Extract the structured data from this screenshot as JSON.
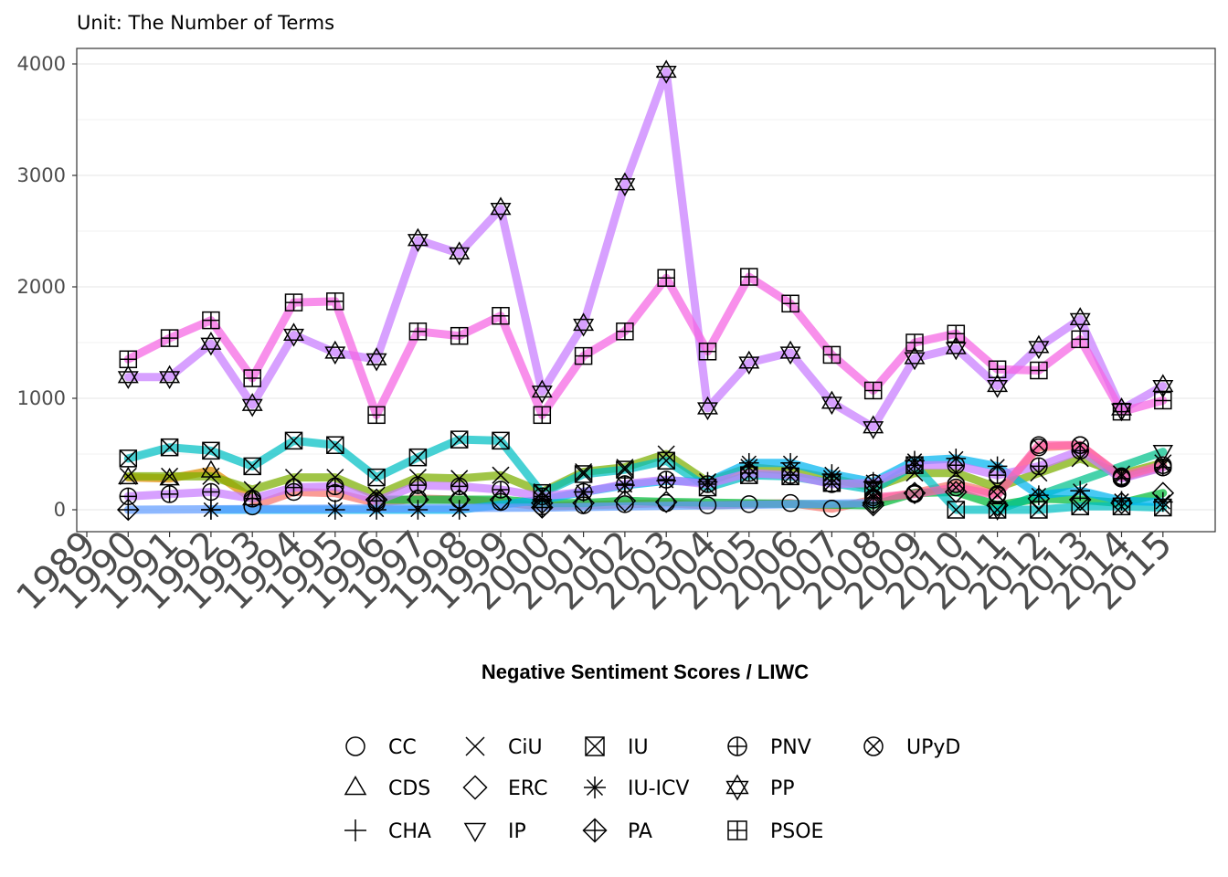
{
  "chart_data": {
    "type": "line",
    "subtitle": "Unit: The Number of Terms",
    "xlabel": "Negative Sentiment Scores / LIWC",
    "ylabel": "",
    "xlim": [
      1989,
      2015
    ],
    "ylim": [
      -150,
      4100
    ],
    "x_ticks": [
      1989,
      1990,
      1991,
      1992,
      1993,
      1994,
      1995,
      1996,
      1997,
      1998,
      1999,
      2000,
      2001,
      2002,
      2003,
      2004,
      2005,
      2006,
      2007,
      2008,
      2009,
      2010,
      2011,
      2012,
      2013,
      2014,
      2015
    ],
    "y_ticks": [
      0,
      1000,
      2000,
      3000,
      4000
    ],
    "grid": "horizontal",
    "legend_position": "bottom",
    "series": [
      {
        "name": "CC",
        "shape": "circle",
        "color": "#F8766D",
        "points": [
          [
            1993,
            30
          ],
          [
            1994,
            160
          ],
          [
            1995,
            150
          ],
          [
            1996,
            60
          ],
          [
            1997,
            100
          ],
          [
            1998,
            90
          ],
          [
            1999,
            70
          ],
          [
            2000,
            30
          ],
          [
            2001,
            40
          ],
          [
            2002,
            50
          ],
          [
            2003,
            60
          ],
          [
            2004,
            40
          ],
          [
            2005,
            50
          ],
          [
            2006,
            60
          ],
          [
            2007,
            10
          ],
          [
            2008,
            90
          ],
          [
            2009,
            150
          ],
          [
            2010,
            230
          ],
          [
            2011,
            140
          ],
          [
            2012,
            560
          ],
          [
            2013,
            580
          ],
          [
            2014,
            290
          ],
          [
            2015,
            380
          ]
        ]
      },
      {
        "name": "CDS",
        "shape": "triangle",
        "color": "#DE8C00",
        "points": [
          [
            1990,
            290
          ],
          [
            1991,
            280
          ],
          [
            1992,
            350
          ],
          [
            1993,
            100
          ]
        ]
      },
      {
        "name": "CHA",
        "shape": "plus",
        "color": "#B79F00",
        "points": [
          [
            1992,
            0
          ]
        ]
      },
      {
        "name": "CiU",
        "shape": "x",
        "color": "#7CAE00",
        "points": [
          [
            1990,
            300
          ],
          [
            1991,
            300
          ],
          [
            1992,
            300
          ],
          [
            1993,
            180
          ],
          [
            1994,
            290
          ],
          [
            1995,
            290
          ],
          [
            1996,
            130
          ],
          [
            1997,
            290
          ],
          [
            1998,
            280
          ],
          [
            1999,
            310
          ],
          [
            2000,
            160
          ],
          [
            2001,
            340
          ],
          [
            2002,
            380
          ],
          [
            2003,
            500
          ],
          [
            2004,
            250
          ],
          [
            2005,
            380
          ],
          [
            2006,
            350
          ],
          [
            2007,
            280
          ],
          [
            2008,
            200
          ],
          [
            2009,
            330
          ],
          [
            2010,
            330
          ],
          [
            2011,
            200
          ],
          [
            2012,
            330
          ],
          [
            2013,
            460
          ],
          [
            2014,
            320
          ],
          [
            2015,
            420
          ]
        ]
      },
      {
        "name": "ERC",
        "shape": "diamond",
        "color": "#00BA38",
        "points": [
          [
            1996,
            90
          ],
          [
            1997,
            90
          ],
          [
            1998,
            90
          ],
          [
            1999,
            90
          ],
          [
            2000,
            60
          ],
          [
            2001,
            60
          ],
          [
            2002,
            80
          ],
          [
            2003,
            70
          ],
          [
            2008,
            40
          ],
          [
            2009,
            150
          ],
          [
            2010,
            160
          ],
          [
            2011,
            40
          ],
          [
            2012,
            100
          ],
          [
            2013,
            90
          ],
          [
            2014,
            60
          ],
          [
            2015,
            150
          ]
        ]
      },
      {
        "name": "IP",
        "shape": "triangle-down",
        "color": "#00C08B",
        "points": [
          [
            2011,
            0
          ],
          [
            2015,
            520
          ]
        ]
      },
      {
        "name": "IU",
        "shape": "square-x",
        "color": "#00BFC4",
        "points": [
          [
            1990,
            460
          ],
          [
            1991,
            560
          ],
          [
            1992,
            530
          ],
          [
            1993,
            390
          ],
          [
            1994,
            620
          ],
          [
            1995,
            580
          ],
          [
            1996,
            290
          ],
          [
            1997,
            470
          ],
          [
            1998,
            630
          ],
          [
            1999,
            620
          ],
          [
            2000,
            150
          ],
          [
            2001,
            320
          ],
          [
            2002,
            360
          ],
          [
            2003,
            440
          ],
          [
            2004,
            200
          ],
          [
            2005,
            310
          ],
          [
            2006,
            300
          ],
          [
            2007,
            240
          ],
          [
            2008,
            180
          ],
          [
            2009,
            400
          ],
          [
            2010,
            0
          ],
          [
            2011,
            0
          ],
          [
            2012,
            0
          ],
          [
            2013,
            30
          ],
          [
            2014,
            30
          ],
          [
            2015,
            20
          ]
        ]
      },
      {
        "name": "IU-ICV",
        "shape": "asterisk",
        "color": "#00B4F0",
        "points": [
          [
            1992,
            0
          ],
          [
            1995,
            0
          ],
          [
            1996,
            0
          ],
          [
            1997,
            0
          ],
          [
            1998,
            0
          ],
          [
            2000,
            90
          ],
          [
            2001,
            160
          ],
          [
            2002,
            220
          ],
          [
            2003,
            260
          ],
          [
            2004,
            250
          ],
          [
            2005,
            420
          ],
          [
            2006,
            420
          ],
          [
            2007,
            320
          ],
          [
            2008,
            250
          ],
          [
            2009,
            440
          ],
          [
            2010,
            460
          ],
          [
            2011,
            390
          ],
          [
            2012,
            130
          ],
          [
            2013,
            170
          ],
          [
            2014,
            80
          ],
          [
            2015,
            70
          ]
        ]
      },
      {
        "name": "PA",
        "shape": "diamond-plus",
        "color": "#619CFF",
        "points": [
          [
            1990,
            0
          ],
          [
            2000,
            20
          ],
          [
            2008,
            60
          ]
        ]
      },
      {
        "name": "PNV",
        "shape": "circle-plus",
        "color": "#C77CFF",
        "points": [
          [
            1990,
            120
          ],
          [
            1991,
            140
          ],
          [
            1992,
            160
          ],
          [
            1993,
            100
          ],
          [
            1994,
            200
          ],
          [
            1995,
            210
          ],
          [
            1996,
            80
          ],
          [
            1997,
            220
          ],
          [
            1998,
            210
          ],
          [
            1999,
            180
          ],
          [
            2000,
            120
          ],
          [
            2001,
            160
          ],
          [
            2002,
            230
          ],
          [
            2003,
            270
          ],
          [
            2004,
            230
          ],
          [
            2005,
            330
          ],
          [
            2006,
            310
          ],
          [
            2007,
            230
          ],
          [
            2008,
            240
          ],
          [
            2009,
            400
          ],
          [
            2010,
            400
          ],
          [
            2011,
            310
          ],
          [
            2012,
            390
          ],
          [
            2013,
            530
          ],
          [
            2014,
            280
          ],
          [
            2015,
            380
          ]
        ]
      },
      {
        "name": "PP",
        "shape": "hexagram",
        "color": "#C77CFF",
        "points": [
          [
            1990,
            1190
          ],
          [
            1991,
            1190
          ],
          [
            1992,
            1490
          ],
          [
            1993,
            940
          ],
          [
            1994,
            1570
          ],
          [
            1995,
            1410
          ],
          [
            1996,
            1350
          ],
          [
            1997,
            2420
          ],
          [
            1998,
            2300
          ],
          [
            1999,
            2700
          ],
          [
            2000,
            1060
          ],
          [
            2001,
            1660
          ],
          [
            2002,
            2920
          ],
          [
            2003,
            3930
          ],
          [
            2004,
            910
          ],
          [
            2005,
            1320
          ],
          [
            2006,
            1410
          ],
          [
            2007,
            960
          ],
          [
            2008,
            740
          ],
          [
            2009,
            1360
          ],
          [
            2010,
            1450
          ],
          [
            2011,
            1110
          ],
          [
            2012,
            1460
          ],
          [
            2013,
            1710
          ],
          [
            2014,
            900
          ],
          [
            2015,
            1110
          ]
        ]
      },
      {
        "name": "PSOE",
        "shape": "square-plus",
        "color": "#F564E3",
        "points": [
          [
            1990,
            1350
          ],
          [
            1991,
            1540
          ],
          [
            1992,
            1700
          ],
          [
            1993,
            1180
          ],
          [
            1994,
            1860
          ],
          [
            1995,
            1870
          ],
          [
            1996,
            850
          ],
          [
            1997,
            1600
          ],
          [
            1998,
            1560
          ],
          [
            1999,
            1740
          ],
          [
            2000,
            850
          ],
          [
            2001,
            1380
          ],
          [
            2002,
            1600
          ],
          [
            2003,
            2080
          ],
          [
            2004,
            1420
          ],
          [
            2005,
            2090
          ],
          [
            2006,
            1850
          ],
          [
            2007,
            1390
          ],
          [
            2008,
            1070
          ],
          [
            2009,
            1500
          ],
          [
            2010,
            1580
          ],
          [
            2011,
            1260
          ],
          [
            2012,
            1250
          ],
          [
            2013,
            1530
          ],
          [
            2014,
            880
          ],
          [
            2015,
            980
          ]
        ]
      },
      {
        "name": "UPyD",
        "shape": "circle-x",
        "color": "#FF64B0",
        "points": [
          [
            2008,
            110
          ],
          [
            2009,
            140
          ],
          [
            2010,
            200
          ],
          [
            2011,
            130
          ],
          [
            2012,
            580
          ],
          [
            2013,
            580
          ],
          [
            2014,
            300
          ],
          [
            2015,
            400
          ]
        ]
      }
    ]
  },
  "legend": {
    "columns": [
      [
        "CC",
        "CDS",
        "CHA"
      ],
      [
        "CiU",
        "ERC",
        "IP"
      ],
      [
        "IU",
        "IU-ICV",
        "PA"
      ],
      [
        "PNV",
        "PP",
        "PSOE"
      ],
      [
        "UPyD"
      ]
    ]
  }
}
